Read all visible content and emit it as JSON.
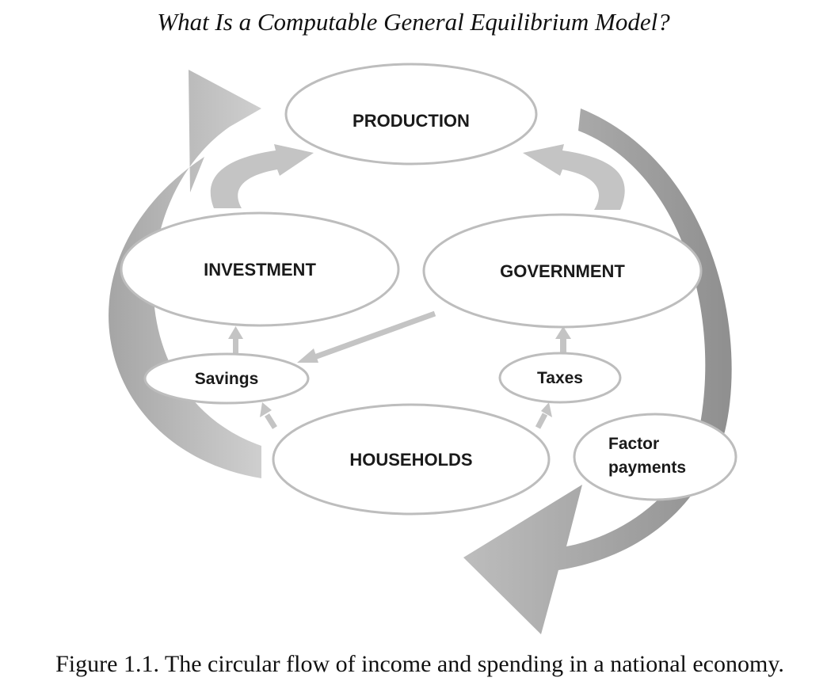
{
  "running_head": "What Is a Computable General Equilibrium Model?",
  "nodes": {
    "production": "PRODUCTION",
    "investment": "INVESTMENT",
    "government": "GOVERNMENT",
    "savings": "Savings",
    "taxes": "Taxes",
    "households": "HOUSEHOLDS",
    "factor_payments_line1": "Factor",
    "factor_payments_line2": "payments"
  },
  "caption": "Figure 1.1. The circular flow of income and spending in a national economy.",
  "colors": {
    "light_arrow": "#c4c4c4",
    "dark_arrow": "#9a9a9a",
    "ellipse_stroke": "#bdbdbd",
    "text": "#1a1a1a"
  }
}
